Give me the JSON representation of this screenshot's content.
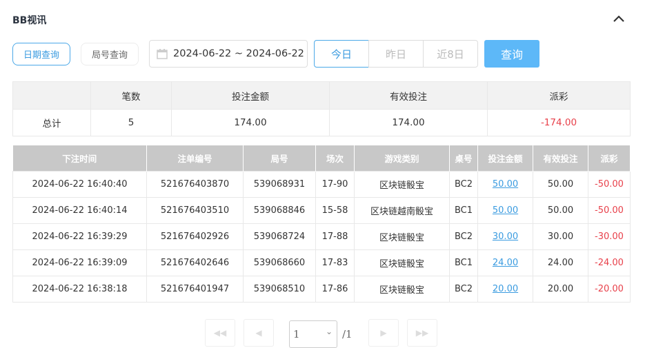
{
  "title": "BB视讯",
  "tabs": {
    "date_query": "日期查询",
    "round_query": "局号查询"
  },
  "date_range": "2024-06-22 ~ 2024-06-22",
  "quick": {
    "today": "今日",
    "yesterday": "昨日",
    "last8": "近8日"
  },
  "query_label": "查询",
  "summary": {
    "headers": [
      "",
      "笔数",
      "投注金额",
      "有效投注",
      "派彩"
    ],
    "row": [
      "总计",
      "5",
      "174.00",
      "174.00",
      "-174.00"
    ]
  },
  "details": {
    "headers": [
      "下注时间",
      "注单编号",
      "局号",
      "场次",
      "游戏类别",
      "桌号",
      "投注金额",
      "有效投注",
      "派彩"
    ],
    "rows": [
      [
        "2024-06-22 16:40:40",
        "521676403870",
        "539068931",
        "17-90",
        "区块链骰宝",
        "BC2",
        "50.00",
        "50.00",
        "-50.00"
      ],
      [
        "2024-06-22 16:40:14",
        "521676403510",
        "539068846",
        "15-58",
        "区块链越南骰宝",
        "BC1",
        "50.00",
        "50.00",
        "-50.00"
      ],
      [
        "2024-06-22 16:39:29",
        "521676402926",
        "539068724",
        "17-88",
        "区块链骰宝",
        "BC2",
        "30.00",
        "30.00",
        "-30.00"
      ],
      [
        "2024-06-22 16:39:09",
        "521676402646",
        "539068660",
        "17-83",
        "区块链骰宝",
        "BC1",
        "24.00",
        "24.00",
        "-24.00"
      ],
      [
        "2024-06-22 16:38:18",
        "521676401947",
        "539068510",
        "17-86",
        "区块链骰宝",
        "BC2",
        "20.00",
        "20.00",
        "-20.00"
      ]
    ]
  },
  "pagination": {
    "page": "1",
    "total": "/1"
  },
  "colors": {
    "accent": "#5db8f8",
    "negative": "#e8404a"
  }
}
